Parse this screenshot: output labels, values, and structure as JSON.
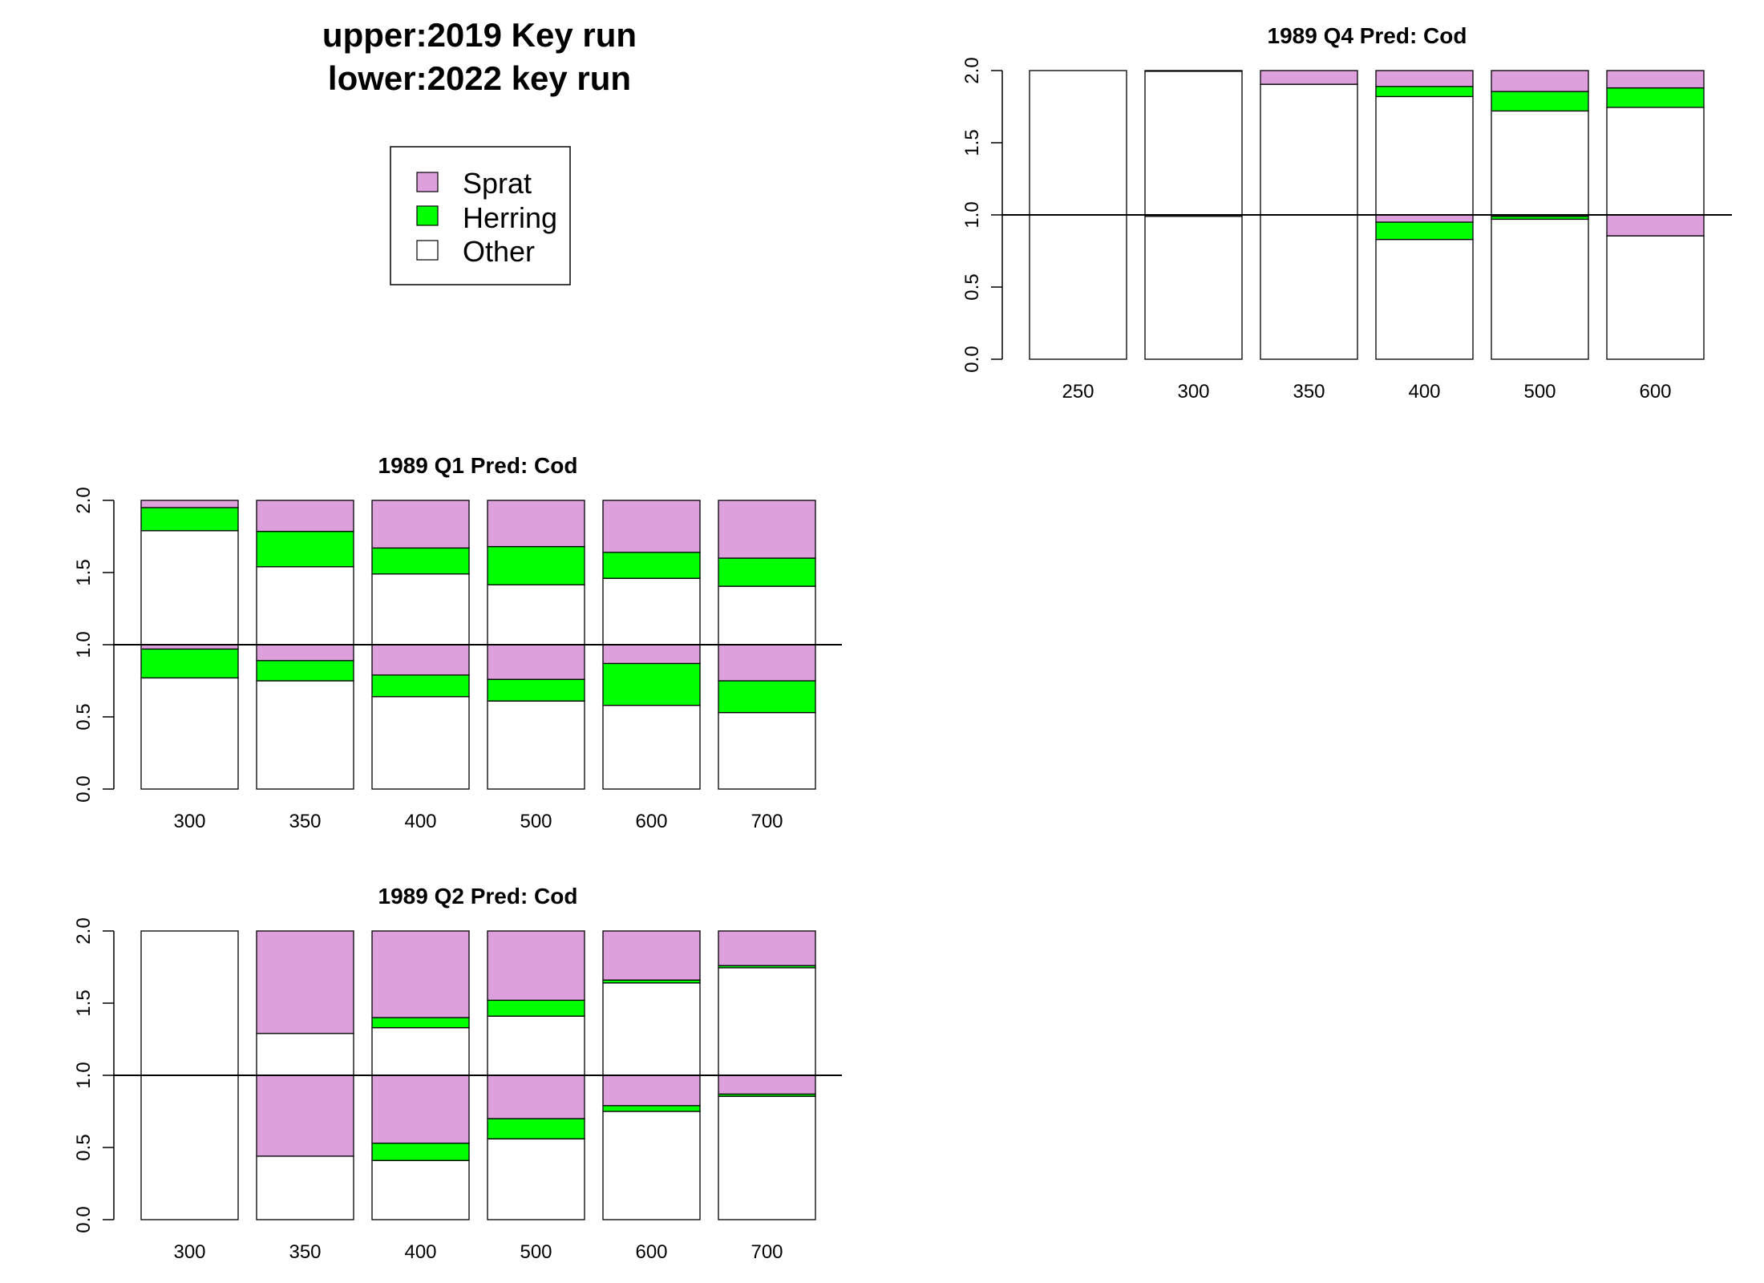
{
  "figure_title": [
    "upper:2019 Key run",
    "lower:2022 key run"
  ],
  "legend": {
    "items": [
      {
        "label": "Sprat",
        "color": "#DDA0DD"
      },
      {
        "label": "Herring",
        "color": "#00FF00"
      },
      {
        "label": "Other",
        "color": "#FFFFFF"
      }
    ]
  },
  "chart_data": [
    {
      "type": "bar",
      "title": "1989 Q4  Pred: Cod",
      "categories": [
        "250",
        "300",
        "350",
        "400",
        "500",
        "600"
      ],
      "ylim": [
        0,
        2
      ],
      "yticks": [
        "0.0",
        "0.5",
        "1.0",
        "1.5",
        "2.0"
      ],
      "reference_line": 1.0,
      "upper_2019": {
        "series": [
          {
            "name": "Other",
            "values": [
              1.0,
              0.995,
              0.905,
              0.82,
              0.72,
              0.745
            ]
          },
          {
            "name": "Herring",
            "values": [
              0.0,
              0.0,
              0.0,
              0.07,
              0.135,
              0.135
            ]
          },
          {
            "name": "Sprat",
            "values": [
              0.0,
              0.005,
              0.095,
              0.11,
              0.145,
              0.12
            ]
          }
        ]
      },
      "lower_2022": {
        "series": [
          {
            "name": "Other",
            "values": [
              1.0,
              0.99,
              1.0,
              0.83,
              0.97,
              0.855
            ]
          },
          {
            "name": "Herring",
            "values": [
              0.0,
              0.0,
              0.0,
              0.12,
              0.02,
              0.0
            ]
          },
          {
            "name": "Sprat",
            "values": [
              0.0,
              0.01,
              0.0,
              0.05,
              0.01,
              0.145
            ]
          }
        ]
      }
    },
    {
      "type": "bar",
      "title": "1989 Q1  Pred: Cod",
      "categories": [
        "300",
        "350",
        "400",
        "500",
        "600",
        "700"
      ],
      "ylim": [
        0,
        2
      ],
      "yticks": [
        "0.0",
        "0.5",
        "1.0",
        "1.5",
        "2.0"
      ],
      "reference_line": 1.0,
      "upper_2019": {
        "series": [
          {
            "name": "Other",
            "values": [
              0.79,
              0.54,
              0.49,
              0.415,
              0.46,
              0.405
            ]
          },
          {
            "name": "Herring",
            "values": [
              0.16,
              0.245,
              0.18,
              0.265,
              0.18,
              0.195
            ]
          },
          {
            "name": "Sprat",
            "values": [
              0.05,
              0.215,
              0.33,
              0.32,
              0.36,
              0.4
            ]
          }
        ]
      },
      "lower_2022": {
        "series": [
          {
            "name": "Other",
            "values": [
              0.77,
              0.75,
              0.64,
              0.61,
              0.58,
              0.53
            ]
          },
          {
            "name": "Herring",
            "values": [
              0.2,
              0.14,
              0.15,
              0.15,
              0.29,
              0.22
            ]
          },
          {
            "name": "Sprat",
            "values": [
              0.03,
              0.11,
              0.21,
              0.24,
              0.13,
              0.25
            ]
          }
        ]
      }
    },
    {
      "type": "bar",
      "title": "1989 Q2  Pred: Cod",
      "categories": [
        "300",
        "350",
        "400",
        "500",
        "600",
        "700"
      ],
      "ylim": [
        0,
        2
      ],
      "yticks": [
        "0.0",
        "0.5",
        "1.0",
        "1.5",
        "2.0"
      ],
      "reference_line": 1.0,
      "upper_2019": {
        "series": [
          {
            "name": "Other",
            "values": [
              1.0,
              0.29,
              0.33,
              0.41,
              0.64,
              0.745
            ]
          },
          {
            "name": "Herring",
            "values": [
              0.0,
              0.0,
              0.07,
              0.11,
              0.02,
              0.015
            ]
          },
          {
            "name": "Sprat",
            "values": [
              0.0,
              0.71,
              0.6,
              0.48,
              0.34,
              0.24
            ]
          }
        ]
      },
      "lower_2022": {
        "series": [
          {
            "name": "Other",
            "values": [
              1.0,
              0.44,
              0.41,
              0.56,
              0.75,
              0.855
            ]
          },
          {
            "name": "Herring",
            "values": [
              0.0,
              0.0,
              0.12,
              0.14,
              0.04,
              0.015
            ]
          },
          {
            "name": "Sprat",
            "values": [
              0.0,
              0.56,
              0.47,
              0.3,
              0.21,
              0.13
            ]
          }
        ]
      }
    }
  ]
}
